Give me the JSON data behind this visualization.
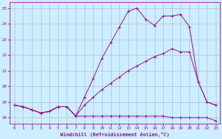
{
  "xlabel": "Windchill (Refroidissement éolien,°C)",
  "bg_color": "#cceeff",
  "line_color": "#990099",
  "grid_color": "#aabbcc",
  "xlim": [
    -0.5,
    23.5
  ],
  "ylim": [
    17.6,
    25.4
  ],
  "yticks": [
    18,
    19,
    20,
    21,
    22,
    23,
    24,
    25
  ],
  "xticks": [
    0,
    1,
    2,
    3,
    4,
    5,
    6,
    7,
    8,
    9,
    10,
    11,
    12,
    13,
    14,
    15,
    16,
    17,
    18,
    19,
    20,
    21,
    22,
    23
  ],
  "series1_x": [
    0,
    1,
    2,
    3,
    4,
    5,
    6,
    7,
    8,
    9,
    10,
    11,
    12,
    13,
    14,
    15,
    16,
    17,
    18,
    19,
    20,
    21,
    22,
    23
  ],
  "series1_y": [
    18.8,
    18.7,
    18.5,
    18.3,
    18.4,
    18.7,
    18.7,
    18.1,
    18.1,
    18.1,
    18.1,
    18.1,
    18.1,
    18.1,
    18.1,
    18.1,
    18.1,
    18.1,
    18.0,
    18.0,
    18.0,
    18.0,
    18.0,
    17.8
  ],
  "series2_x": [
    0,
    1,
    2,
    3,
    4,
    5,
    6,
    7,
    8,
    9,
    10,
    11,
    12,
    13,
    14,
    15,
    16,
    17,
    18,
    19,
    20,
    21,
    22,
    23
  ],
  "series2_y": [
    18.8,
    18.7,
    18.5,
    18.3,
    18.4,
    18.7,
    18.7,
    18.1,
    18.8,
    19.3,
    19.8,
    20.2,
    20.6,
    21.0,
    21.3,
    21.6,
    21.9,
    22.1,
    22.4,
    22.2,
    22.2,
    20.3,
    19.0,
    18.8
  ],
  "series3_x": [
    0,
    1,
    2,
    3,
    4,
    5,
    6,
    7,
    8,
    9,
    10,
    11,
    12,
    13,
    14,
    15,
    16,
    17,
    18,
    19,
    20,
    21,
    22,
    23
  ],
  "series3_y": [
    18.8,
    18.7,
    18.5,
    18.3,
    18.4,
    18.7,
    18.7,
    18.1,
    19.3,
    20.5,
    21.8,
    22.8,
    23.8,
    24.8,
    25.0,
    24.3,
    23.9,
    24.5,
    24.5,
    24.6,
    23.8,
    20.3,
    19.0,
    18.8
  ]
}
